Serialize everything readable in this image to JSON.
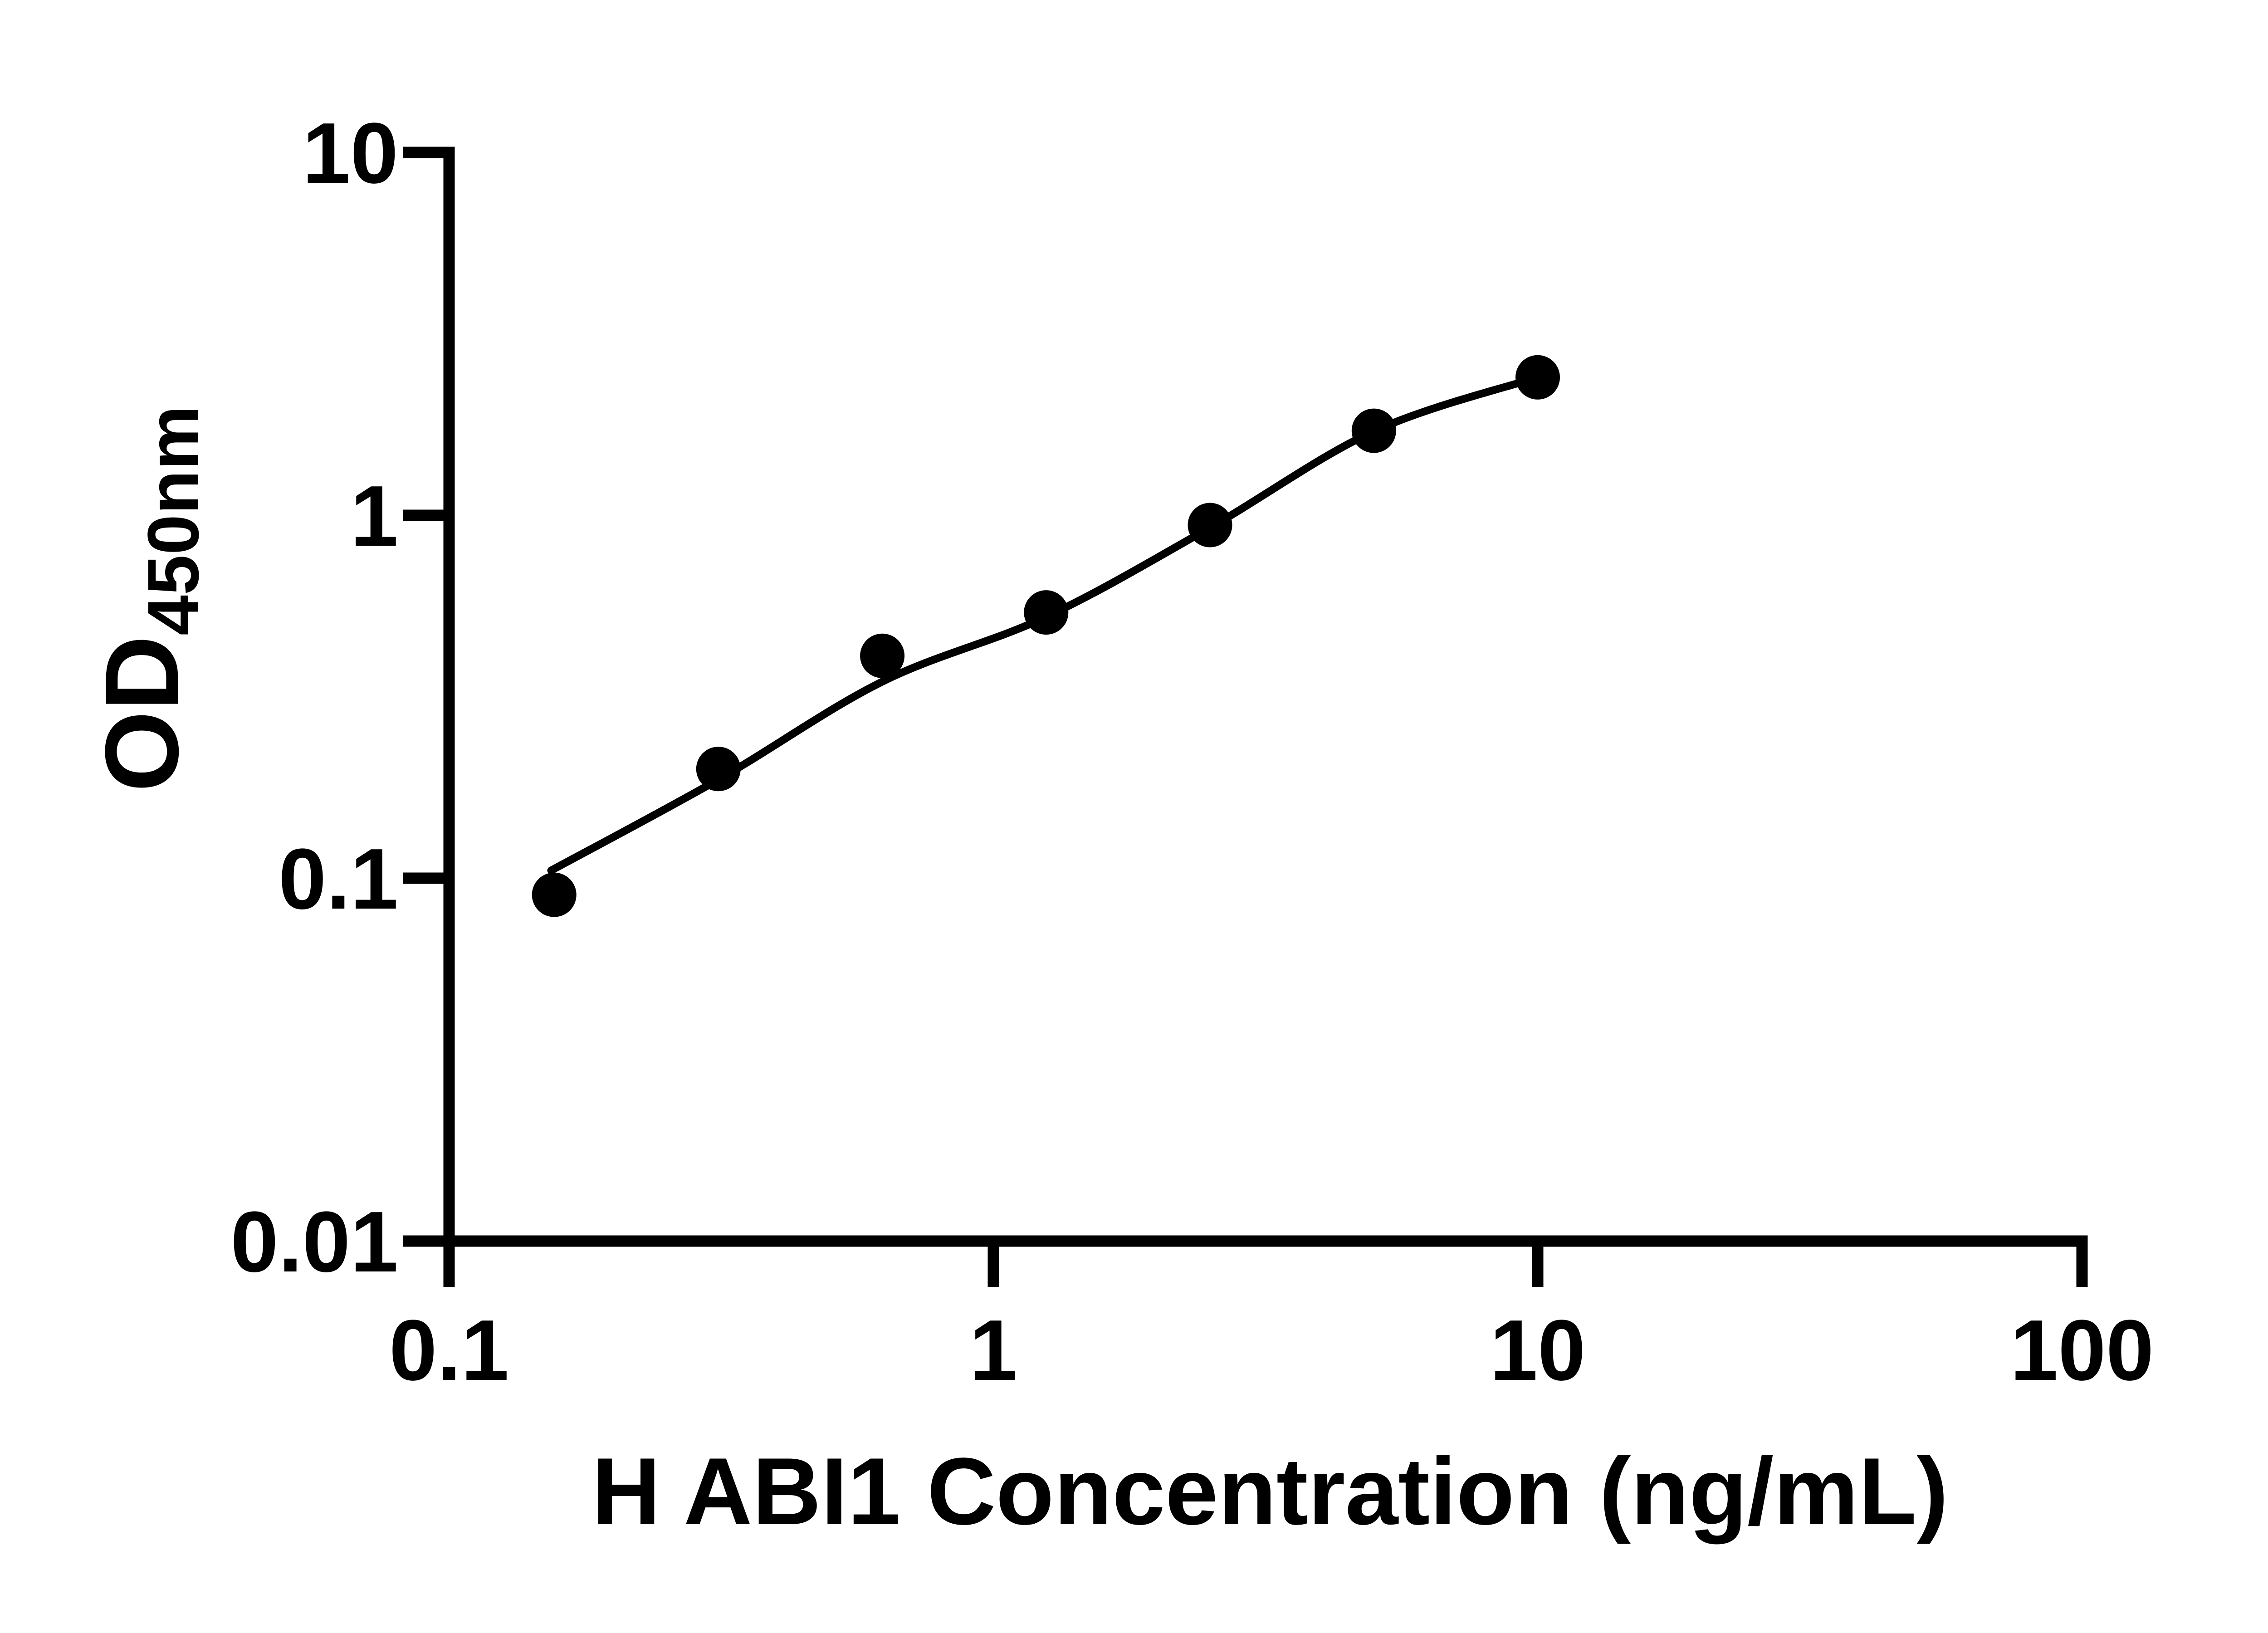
{
  "figure": {
    "background_color": "#ffffff",
    "ink_color": "#000000",
    "legend": "none",
    "grid": "off"
  },
  "chart_data": {
    "type": "scatter",
    "title": "",
    "xlabel": "H ABI1 Concentration (ng/mL)",
    "ylabel_main": "OD",
    "ylabel_sub": "450nm",
    "x_scale": "log10",
    "y_scale": "log10",
    "xlim": [
      0.1,
      100
    ],
    "ylim": [
      0.01,
      10
    ],
    "x_ticks": [
      {
        "value": 0.1,
        "label": "0.1"
      },
      {
        "value": 1,
        "label": "1"
      },
      {
        "value": 10,
        "label": "10"
      },
      {
        "value": 100,
        "label": "100"
      }
    ],
    "y_ticks": [
      {
        "value": 10,
        "label": "10"
      },
      {
        "value": 1,
        "label": "1"
      },
      {
        "value": 0.1,
        "label": "0.1"
      },
      {
        "value": 0.01,
        "label": "0.01"
      }
    ],
    "series": [
      {
        "name": "standard-curve-points",
        "marker": "filled-circle",
        "color": "#000000",
        "points": [
          {
            "x": 0.156,
            "y": 0.09
          },
          {
            "x": 0.3125,
            "y": 0.2
          },
          {
            "x": 0.625,
            "y": 0.41
          },
          {
            "x": 1.25,
            "y": 0.54
          },
          {
            "x": 2.5,
            "y": 0.94
          },
          {
            "x": 5,
            "y": 1.71
          },
          {
            "x": 10,
            "y": 2.4
          }
        ]
      }
    ],
    "fit_curve_samples": [
      {
        "x": 0.154,
        "y": 0.105
      },
      {
        "x": 0.3125,
        "y": 0.187
      },
      {
        "x": 0.625,
        "y": 0.348
      },
      {
        "x": 1.25,
        "y": 0.525
      },
      {
        "x": 2.5,
        "y": 0.925
      },
      {
        "x": 5,
        "y": 1.705
      },
      {
        "x": 10,
        "y": 2.4
      }
    ]
  }
}
